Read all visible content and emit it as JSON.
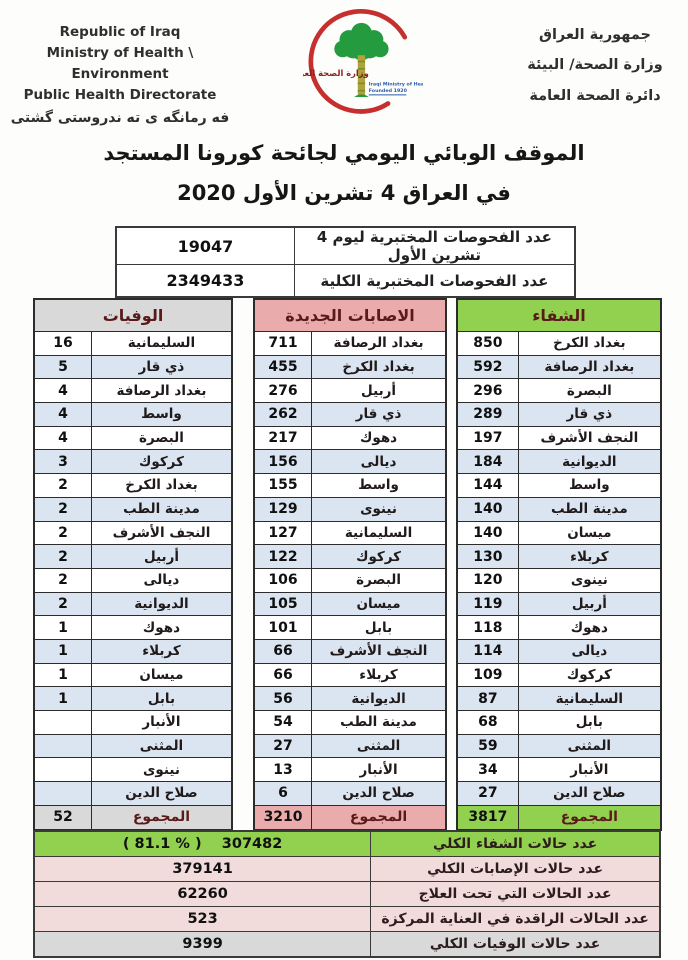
{
  "header": {
    "left_lines": [
      "Republic of Iraq",
      "Ministry of Health \\ Environment",
      "Public Health Directorate",
      "فه رمانگه ی ته ندروستی گشتی"
    ],
    "right_lines": [
      "جمهورية العراق",
      "وزارة الصحة/ البيئة",
      "دائرة الصحة العامة"
    ],
    "logo": {
      "arabic": "وزارة الصحة العراقية",
      "english": "Iraqi Ministry of Health",
      "founded": "Founded 1920"
    }
  },
  "title": {
    "line1": "الموقف الوبائي اليومي لجائحة كورونا المستجد",
    "line2": "في العراق  4  تشرين الأول 2020"
  },
  "tests": {
    "rows": [
      {
        "label": "عدد الفحوصات المختبرية  ليوم 4 تشرين الأول",
        "value": "19047"
      },
      {
        "label": "عدد الفحوصات المختبرية الكلية",
        "value": "2349433"
      }
    ]
  },
  "tables": {
    "deaths": {
      "title": "الوفيات",
      "header_bg": "#d9d9d9",
      "total_bg": "#d9d9d9",
      "rows": [
        {
          "name": "السليمانية",
          "value": "16"
        },
        {
          "name": "ذي قار",
          "value": "5"
        },
        {
          "name": "بغداد الرصافة",
          "value": "4"
        },
        {
          "name": "واسط",
          "value": "4"
        },
        {
          "name": "البصرة",
          "value": "4"
        },
        {
          "name": "كركوك",
          "value": "3"
        },
        {
          "name": "بغداد الكرخ",
          "value": "2"
        },
        {
          "name": "مدينة الطب",
          "value": "2"
        },
        {
          "name": "النجف الأشرف",
          "value": "2"
        },
        {
          "name": "أربيل",
          "value": "2"
        },
        {
          "name": "ديالى",
          "value": "2"
        },
        {
          "name": "الديوانية",
          "value": "2"
        },
        {
          "name": "دهوك",
          "value": "1"
        },
        {
          "name": "كربلاء",
          "value": "1"
        },
        {
          "name": "ميسان",
          "value": "1"
        },
        {
          "name": "بابل",
          "value": "1"
        },
        {
          "name": "الأنبار",
          "value": ""
        },
        {
          "name": "المثنى",
          "value": ""
        },
        {
          "name": "نينوى",
          "value": ""
        },
        {
          "name": "صلاح الدين",
          "value": ""
        }
      ],
      "total_label": "المجموع",
      "total_value": "52"
    },
    "new_cases": {
      "title": "الاصابات الجديدة",
      "header_bg": "#e9abab",
      "total_bg": "#e9abab",
      "rows": [
        {
          "name": "بغداد الرصافة",
          "value": "711"
        },
        {
          "name": "بغداد الكرخ",
          "value": "455"
        },
        {
          "name": "أربيل",
          "value": "276"
        },
        {
          "name": "ذي قار",
          "value": "262"
        },
        {
          "name": "دهوك",
          "value": "217"
        },
        {
          "name": "ديالى",
          "value": "156"
        },
        {
          "name": "واسط",
          "value": "155"
        },
        {
          "name": "نينوى",
          "value": "129"
        },
        {
          "name": "السليمانية",
          "value": "127"
        },
        {
          "name": "كركوك",
          "value": "122"
        },
        {
          "name": "البصرة",
          "value": "106"
        },
        {
          "name": "ميسان",
          "value": "105"
        },
        {
          "name": "بابل",
          "value": "101"
        },
        {
          "name": "النجف الأشرف",
          "value": "66"
        },
        {
          "name": "كربلاء",
          "value": "66"
        },
        {
          "name": "الديوانية",
          "value": "56"
        },
        {
          "name": "مدينة الطب",
          "value": "54"
        },
        {
          "name": "المثنى",
          "value": "27"
        },
        {
          "name": "الأنبار",
          "value": "13"
        },
        {
          "name": "صلاح الدين",
          "value": "6"
        }
      ],
      "total_label": "المجموع",
      "total_value": "3210"
    },
    "recoveries": {
      "title": "الشفاء",
      "header_bg": "#92d050",
      "total_bg": "#92d050",
      "rows": [
        {
          "name": "بغداد الكرخ",
          "value": "850"
        },
        {
          "name": "بغداد الرصافة",
          "value": "592"
        },
        {
          "name": "البصرة",
          "value": "296"
        },
        {
          "name": "ذي قار",
          "value": "289"
        },
        {
          "name": "النجف الأشرف",
          "value": "197"
        },
        {
          "name": "الديوانية",
          "value": "184"
        },
        {
          "name": "واسط",
          "value": "144"
        },
        {
          "name": "مدينة الطب",
          "value": "140"
        },
        {
          "name": "ميسان",
          "value": "140"
        },
        {
          "name": "كربلاء",
          "value": "130"
        },
        {
          "name": "نينوى",
          "value": "120"
        },
        {
          "name": "أربيل",
          "value": "119"
        },
        {
          "name": "دهوك",
          "value": "118"
        },
        {
          "name": "ديالى",
          "value": "114"
        },
        {
          "name": "كركوك",
          "value": "109"
        },
        {
          "name": "السليمانية",
          "value": "87"
        },
        {
          "name": "بابل",
          "value": "68"
        },
        {
          "name": "المثنى",
          "value": "59"
        },
        {
          "name": "الأنبار",
          "value": "34"
        },
        {
          "name": "صلاح الدين",
          "value": "27"
        }
      ],
      "total_label": "المجموع",
      "total_value": "3817"
    }
  },
  "summary": {
    "rows": [
      {
        "label": "عدد حالات الشفاء الكلي",
        "value": "( 81.1 % )    307482",
        "bg": "#92d050"
      },
      {
        "label": "عدد حالات الإصابات الكلي",
        "value": "379141",
        "bg": "#f2dcdb"
      },
      {
        "label": "عدد الحالات التي تحت العلاج",
        "value": "62260",
        "bg": "#f2dcdb"
      },
      {
        "label": "عدد الحالات الراقدة في العناية المركزة",
        "value": "523",
        "bg": "#f2dcdb"
      },
      {
        "label": "عدد حالات الوفيات الكلي",
        "value": "9399",
        "bg": "#d9d9d9"
      }
    ]
  },
  "colors": {
    "recovery_green": "#92d050",
    "infection_pink": "#e9abab",
    "summary_pink": "#f2dcdb",
    "deaths_gray": "#d9d9d9",
    "alt_row_blue": "#dbe5f1",
    "crescent_red": "#c5302f",
    "tree_green": "#259b3f"
  }
}
